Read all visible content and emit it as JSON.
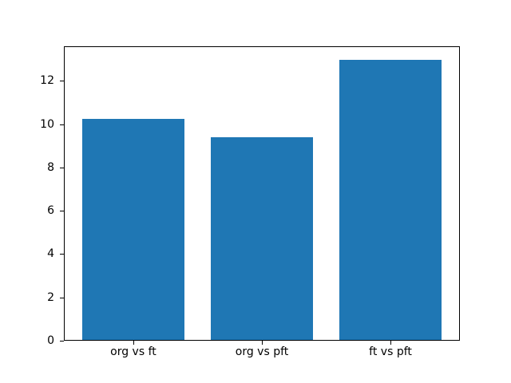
{
  "figure": {
    "background": "#ffffff"
  },
  "chart_data": {
    "type": "bar",
    "title": "",
    "xlabel": "",
    "ylabel": "",
    "categories": [
      "org vs ft",
      "org vs pft",
      "ft vs pft"
    ],
    "values": [
      10.2,
      9.35,
      12.95
    ],
    "bar_color": "#1f77b4",
    "bar_width": 0.8,
    "xlim": [
      -0.54,
      2.54
    ],
    "ylim": [
      0,
      13.6
    ],
    "yticks": [
      0,
      2,
      4,
      6,
      8,
      10,
      12
    ],
    "grid": false,
    "legend": "none",
    "axis_color": "#000000",
    "text_color": "#000000"
  }
}
